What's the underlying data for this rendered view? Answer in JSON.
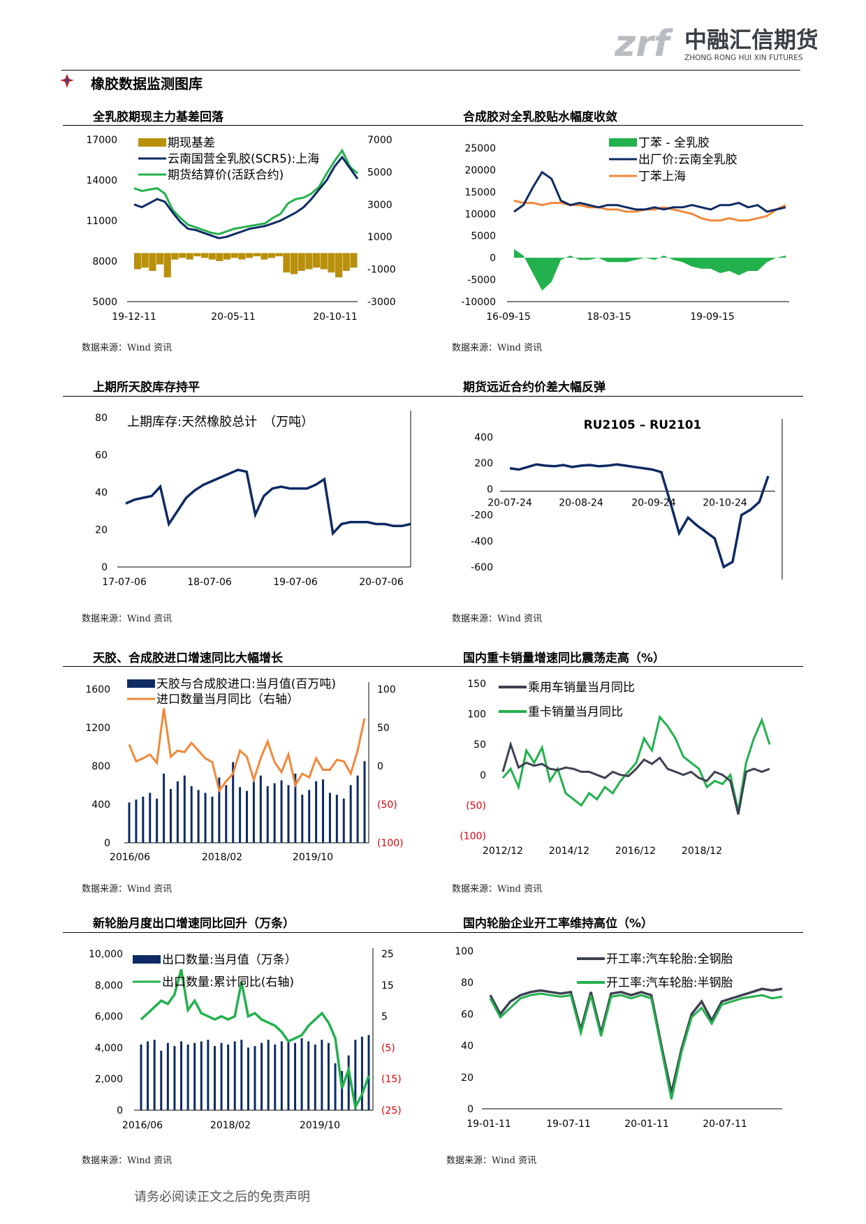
{
  "header": {
    "logo_mark": "zrf",
    "logo_cn": "中融汇信期货",
    "logo_en": "ZHONG RONG HUI XIN FUTURES",
    "section_title": "橡胶数据监测图库"
  },
  "colors": {
    "navy": "#0d2a63",
    "green": "#22b14c",
    "gold": "#b8900b",
    "orange": "#f0883a",
    "dark_gray": "#3c4150",
    "red": "#e0000a"
  },
  "footer": {
    "disclaimer": "请务必阅读正文之后的免责声明"
  },
  "charts": [
    {
      "title": "全乳胶期现主力基差回落",
      "source": "数据来源：Wind 资讯",
      "chart_data": {
        "type": "line+bar",
        "legend": [
          "期现基差",
          "云南国营全乳胶(SCR5):上海",
          "期货结算价(活跃合约)"
        ],
        "x_ticks": [
          "19-12-11",
          "20-05-11",
          "20-10-11"
        ],
        "y_left": {
          "ticks": [
            "17000",
            "14000",
            "11000",
            "8000",
            "5000"
          ],
          "range": [
            5000,
            17000
          ]
        },
        "y_right": {
          "ticks": [
            "7000",
            "5000",
            "3000",
            "1000",
            "-1000",
            "-3000"
          ],
          "range": [
            -3000,
            7000
          ]
        },
        "series": [
          {
            "name": "云南国营全乳胶(SCR5):上海",
            "axis": "left",
            "values": [
              12200,
              12000,
              12300,
              12600,
              12400,
              11600,
              10900,
              10400,
              10300,
              10100,
              9900,
              9700,
              9800,
              10000,
              10200,
              10400,
              10500,
              10600,
              10800,
              11000,
              11300,
              11600,
              12000,
              12600,
              13300,
              14000,
              15000,
              15700,
              14900,
              14100
            ]
          },
          {
            "name": "期货结算价(活跃合约)",
            "axis": "left",
            "values": [
              13400,
              13200,
              13300,
              13400,
              13000,
              11800,
              11200,
              10700,
              10500,
              10300,
              10100,
              10000,
              10200,
              10400,
              10500,
              10600,
              10700,
              10800,
              11200,
              11500,
              12300,
              12600,
              12700,
              13000,
              13500,
              14500,
              15400,
              16200,
              15000,
              14500
            ]
          },
          {
            "name": "期现基差",
            "axis": "right",
            "values": [
              -1000,
              -900,
              -1100,
              -700,
              -1500,
              -400,
              -300,
              -400,
              -200,
              -300,
              -400,
              -500,
              -400,
              -300,
              -400,
              -300,
              -200,
              -400,
              -300,
              -200,
              -1200,
              -1300,
              -1100,
              -1000,
              -900,
              -1000,
              -1200,
              -1500,
              -1100,
              -900
            ]
          }
        ]
      }
    },
    {
      "title": "合成胶对全乳胶贴水幅度收敛",
      "source": "数据来源：Wind 资讯",
      "chart_data": {
        "type": "line+area",
        "legend": [
          "丁苯 - 全乳胶",
          "出厂价:云南全乳胶",
          "丁苯上海"
        ],
        "x_ticks": [
          "16-09-15",
          "18-03-15",
          "19-09-15"
        ],
        "y": {
          "ticks": [
            "25000",
            "20000",
            "15000",
            "10000",
            "5000",
            "0",
            "-5000",
            "-10000"
          ],
          "range": [
            -10000,
            25000
          ]
        },
        "series": [
          {
            "name": "出厂价:云南全乳胶",
            "values": [
              10500,
              12000,
              16000,
              19500,
              18000,
              13000,
              12000,
              12500,
              12000,
              11500,
              12000,
              12000,
              11500,
              11000,
              11000,
              11500,
              11000,
              11500,
              11500,
              12000,
              11500,
              11000,
              12000,
              12000,
              12500,
              11500,
              12000,
              10500,
              11000,
              11500
            ]
          },
          {
            "name": "丁苯上海",
            "values": [
              13000,
              12500,
              12500,
              12000,
              12500,
              12500,
              12000,
              12000,
              11500,
              11500,
              11000,
              11000,
              10500,
              10500,
              11000,
              11000,
              11500,
              11000,
              10500,
              10000,
              9000,
              8500,
              8500,
              9000,
              8500,
              8500,
              9000,
              9500,
              11000,
              12000
            ]
          },
          {
            "name": "丁苯 - 全乳胶",
            "values": [
              2000,
              500,
              -3500,
              -7500,
              -5500,
              -500,
              500,
              -500,
              -500,
              0,
              -1000,
              -1000,
              -1000,
              -500,
              0,
              -500,
              500,
              -500,
              -1000,
              -2000,
              -2500,
              -2500,
              -3500,
              -3000,
              -4000,
              -3000,
              -3000,
              -1000,
              0,
              500
            ]
          }
        ]
      }
    },
    {
      "title": "上期所天胶库存持平",
      "source": "数据来源：Wind 资讯",
      "chart_data": {
        "type": "line",
        "title": "上期库存:天然橡胶总计　（万吨）",
        "x_ticks": [
          "17-07-06",
          "18-07-06",
          "19-07-06",
          "20-07-06"
        ],
        "y": {
          "ticks": [
            "80",
            "60",
            "40",
            "20",
            "0"
          ],
          "range": [
            0,
            80
          ]
        },
        "series": [
          {
            "name": "上期库存:天然橡胶总计",
            "values": [
              34,
              36,
              37,
              38,
              43,
              23,
              30,
              37,
              41,
              44,
              46,
              48,
              50,
              52,
              51,
              28,
              38,
              42,
              43,
              42,
              42,
              42,
              44,
              47,
              18,
              23,
              24,
              24,
              24,
              23,
              23,
              22,
              22,
              23
            ]
          }
        ]
      }
    },
    {
      "title": "期货远近合约价差大幅反弹",
      "source": "数据来源：Wind 资讯",
      "chart_data": {
        "type": "line",
        "title": "RU2105 – RU2101",
        "x_ticks": [
          "20-07-24",
          "20-08-24",
          "20-09-24",
          "20-10-24"
        ],
        "y": {
          "ticks": [
            "400",
            "200",
            "0",
            "-200",
            "-400",
            "-600"
          ],
          "range": [
            -600,
            400
          ]
        },
        "series": [
          {
            "name": "RU2105 – RU2101",
            "values": [
              160,
              150,
              170,
              190,
              180,
              175,
              185,
              170,
              180,
              185,
              175,
              180,
              190,
              180,
              170,
              160,
              150,
              130,
              -100,
              -340,
              -220,
              -280,
              -330,
              -380,
              -600,
              -560,
              -200,
              -160,
              -100,
              100
            ]
          }
        ]
      }
    },
    {
      "title": "天胶、合成胶进口增速同比大幅增长",
      "source": "数据来源：Wind 资讯",
      "chart_data": {
        "type": "bar+line",
        "legend": [
          "天胶与合成胶进口:当月值(百万吨)",
          "进口数量当月同比（右轴）"
        ],
        "x_ticks": [
          "2016/06",
          "2018/02",
          "2019/10"
        ],
        "y_left": {
          "ticks": [
            "1600",
            "1200",
            "800",
            "400",
            "0"
          ],
          "range": [
            0,
            1600
          ]
        },
        "y_right": {
          "ticks": [
            "100",
            "50",
            "0",
            "(50)",
            "(100)"
          ],
          "range": [
            -100,
            100
          ]
        },
        "series": [
          {
            "name": "天胶与合成胶进口:当月值(百万吨)",
            "axis": "left",
            "values": [
              420,
              450,
              480,
              520,
              460,
              720,
              560,
              640,
              700,
              590,
              550,
              520,
              480,
              680,
              600,
              840,
              580,
              540,
              640,
              700,
              590,
              620,
              650,
              600,
              720,
              500,
              550,
              640,
              660,
              520,
              500,
              460,
              600,
              700,
              850
            ]
          },
          {
            "name": "进口数量当月同比（右轴）",
            "axis": "right",
            "values": [
              28,
              6,
              10,
              15,
              4,
              75,
              12,
              20,
              18,
              30,
              20,
              10,
              5,
              -32,
              -20,
              -10,
              20,
              12,
              -18,
              10,
              32,
              5,
              -8,
              15,
              -25,
              -10,
              -15,
              10,
              -5,
              -5,
              8,
              6,
              -10,
              20,
              62
            ]
          }
        ]
      }
    },
    {
      "title": "国内重卡销量增速同比震荡走高（%）",
      "source": "数据来源：Wind 资讯",
      "chart_data": {
        "type": "line",
        "legend": [
          "乘用车销量当月同比",
          "重卡销量当月同比"
        ],
        "x_ticks": [
          "2012/12",
          "2014/12",
          "2016/12",
          "2018/12"
        ],
        "y": {
          "ticks": [
            "150",
            "100",
            "50",
            "0",
            "(50)",
            "(100)"
          ],
          "range": [
            -100,
            150
          ]
        },
        "series": [
          {
            "name": "乘用车销量当月同比",
            "values": [
              5,
              50,
              12,
              20,
              15,
              18,
              10,
              8,
              12,
              10,
              5,
              5,
              0,
              -5,
              5,
              0,
              -2,
              10,
              25,
              18,
              28,
              10,
              5,
              0,
              5,
              -5,
              -10,
              5,
              0,
              -10,
              -65,
              5,
              10,
              5,
              10
            ]
          },
          {
            "name": "重卡销量当月同比",
            "values": [
              -5,
              10,
              -20,
              40,
              20,
              45,
              -10,
              10,
              -30,
              -40,
              -50,
              -30,
              -40,
              -20,
              -30,
              -10,
              5,
              20,
              60,
              40,
              95,
              80,
              60,
              30,
              20,
              10,
              -20,
              -10,
              -15,
              0,
              -60,
              20,
              60,
              90,
              50
            ]
          }
        ]
      }
    },
    {
      "title": "新轮胎月度出口增速同比回升（万条）",
      "source": "数据来源：Wind 资讯",
      "chart_data": {
        "type": "bar+line",
        "legend": [
          "出口数量:当月值（万条）",
          "出口数量:累计同比(右轴)"
        ],
        "x_ticks": [
          "2016/06",
          "2018/02",
          "2019/10"
        ],
        "y_left": {
          "ticks": [
            "10,000",
            "8,000",
            "6,000",
            "4,000",
            "2,000",
            "0"
          ],
          "range": [
            0,
            10000
          ]
        },
        "y_right": {
          "ticks": [
            "25",
            "15",
            "5",
            "(5)",
            "(15)",
            "(25)"
          ],
          "range": [
            -25,
            25
          ]
        },
        "series": [
          {
            "name": "出口数量:当月值（万条）",
            "axis": "left",
            "values": [
              4200,
              4400,
              4500,
              3800,
              4300,
              4100,
              4400,
              4200,
              4300,
              4400,
              4500,
              4100,
              4300,
              4200,
              4400,
              4500,
              4000,
              4100,
              4300,
              4500,
              4200,
              4400,
              4500,
              4300,
              4600,
              4400,
              4200,
              4500,
              4300,
              3000,
              2500,
              3500,
              4500,
              4700,
              4800
            ]
          },
          {
            "name": "出口数量:累计同比(右轴)",
            "axis": "right",
            "values": [
              4,
              6,
              8,
              10,
              9,
              12,
              20,
              7,
              10,
              6,
              5,
              4,
              5,
              4,
              5,
              16,
              5,
              6,
              4,
              3,
              2,
              0,
              -3,
              -2,
              -1,
              2,
              4,
              6,
              3,
              -2,
              -18,
              -12,
              -24,
              -20,
              -14
            ]
          }
        ]
      }
    },
    {
      "title": "国内轮胎企业开工率维持高位（%）",
      "source": "数据来源：Wind 资讯",
      "chart_data": {
        "type": "line",
        "legend": [
          "开工率:汽车轮胎:全钢胎",
          "开工率:汽车轮胎:半钢胎"
        ],
        "x_ticks": [
          "19-01-11",
          "19-07-11",
          "20-01-11",
          "20-07-11"
        ],
        "y": {
          "ticks": [
            "100",
            "80",
            "60",
            "40",
            "20",
            "0"
          ],
          "range": [
            0,
            100
          ]
        },
        "series": [
          {
            "name": "开工率:汽车轮胎:全钢胎",
            "values": [
              72,
              60,
              68,
              72,
              74,
              75,
              74,
              73,
              74,
              50,
              74,
              48,
              73,
              74,
              72,
              74,
              72,
              40,
              10,
              38,
              60,
              68,
              56,
              68,
              70,
              72,
              74,
              76,
              75,
              76
            ]
          },
          {
            "name": "开工率:汽车轮胎:半钢胎",
            "values": [
              70,
              58,
              64,
              70,
              72,
              73,
              72,
              71,
              72,
              48,
              72,
              46,
              71,
              72,
              70,
              72,
              70,
              38,
              6,
              36,
              58,
              64,
              54,
              66,
              68,
              70,
              71,
              72,
              70,
              71
            ]
          }
        ]
      }
    }
  ]
}
